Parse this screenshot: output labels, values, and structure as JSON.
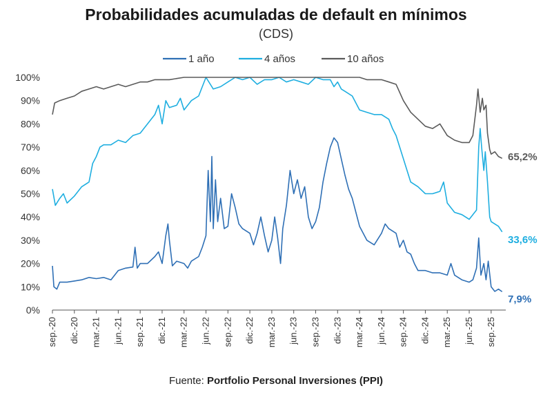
{
  "chart_data": {
    "type": "line",
    "title": "Probabilidades acumuladas de default en mínimos",
    "subtitle": "(CDS)",
    "source_prefix": "Fuente: ",
    "source_name": "Portfolio Personal Inversiones (PPI)",
    "ylim": [
      0,
      100
    ],
    "yticks": [
      0,
      10,
      20,
      30,
      40,
      50,
      60,
      70,
      80,
      90,
      100
    ],
    "ytick_labels": [
      "0%",
      "10%",
      "20%",
      "30%",
      "40%",
      "50%",
      "60%",
      "70%",
      "80%",
      "90%",
      "100%"
    ],
    "xlim": [
      0,
      62
    ],
    "x_unit": "months since sep.-20",
    "xticks": [
      0,
      3,
      6,
      9,
      12,
      15,
      18,
      21,
      24,
      27,
      30,
      33,
      36,
      39,
      42,
      45,
      48,
      51,
      54,
      57,
      60
    ],
    "xtick_labels": [
      "sep.-20",
      "dic.-20",
      "mar.-21",
      "jun.-21",
      "sep.-21",
      "dic.-21",
      "mar.-22",
      "jun.-22",
      "sep.-22",
      "dic.-22",
      "mar.-23",
      "jun.-23",
      "sep.-23",
      "dic.-23",
      "mar.-24",
      "jun.-24",
      "sep.-24",
      "dic.-24",
      "mar.-25",
      "jun.-25",
      "sep.-25"
    ],
    "legend_position": "top-center",
    "grid": false,
    "series": [
      {
        "name": "1 año",
        "color": "#2e6fb5",
        "end_label": "7,9%",
        "points": [
          [
            0,
            19
          ],
          [
            0.2,
            10
          ],
          [
            0.6,
            9
          ],
          [
            1,
            12
          ],
          [
            2,
            12
          ],
          [
            3,
            12.5
          ],
          [
            4,
            13
          ],
          [
            5,
            14
          ],
          [
            6,
            13.5
          ],
          [
            7,
            14
          ],
          [
            8,
            13
          ],
          [
            9,
            17
          ],
          [
            10,
            18
          ],
          [
            11,
            18.5
          ],
          [
            11.3,
            27
          ],
          [
            11.6,
            18
          ],
          [
            12,
            20
          ],
          [
            13,
            20
          ],
          [
            14,
            23
          ],
          [
            14.5,
            25
          ],
          [
            15,
            20
          ],
          [
            15.5,
            32
          ],
          [
            15.8,
            37
          ],
          [
            16,
            30
          ],
          [
            16.4,
            19
          ],
          [
            17,
            21
          ],
          [
            18,
            20
          ],
          [
            18.5,
            18
          ],
          [
            19,
            21
          ],
          [
            20,
            23
          ],
          [
            20.5,
            27
          ],
          [
            21,
            32
          ],
          [
            21.3,
            60
          ],
          [
            21.6,
            38
          ],
          [
            21.8,
            66
          ],
          [
            22,
            35
          ],
          [
            22.3,
            56
          ],
          [
            22.6,
            38
          ],
          [
            23,
            48
          ],
          [
            23.5,
            35
          ],
          [
            24,
            36
          ],
          [
            24.5,
            50
          ],
          [
            25,
            44
          ],
          [
            25.5,
            37
          ],
          [
            26,
            35
          ],
          [
            27,
            33
          ],
          [
            27.5,
            28
          ],
          [
            28,
            33
          ],
          [
            28.5,
            40
          ],
          [
            29,
            32
          ],
          [
            29.5,
            25
          ],
          [
            30,
            30
          ],
          [
            30.4,
            40
          ],
          [
            30.8,
            31
          ],
          [
            31.2,
            20
          ],
          [
            31.5,
            35
          ],
          [
            32,
            45
          ],
          [
            32.5,
            60
          ],
          [
            33,
            50
          ],
          [
            33.5,
            56
          ],
          [
            34,
            48
          ],
          [
            34.5,
            53
          ],
          [
            35,
            40
          ],
          [
            35.5,
            35
          ],
          [
            36,
            38
          ],
          [
            36.5,
            44
          ],
          [
            37,
            55
          ],
          [
            37.5,
            63
          ],
          [
            38,
            70
          ],
          [
            38.5,
            74
          ],
          [
            39,
            72
          ],
          [
            39.5,
            65
          ],
          [
            40,
            58
          ],
          [
            40.5,
            52
          ],
          [
            41,
            48
          ],
          [
            41.5,
            42
          ],
          [
            42,
            36
          ],
          [
            43,
            30
          ],
          [
            44,
            28
          ],
          [
            45,
            33
          ],
          [
            45.5,
            37
          ],
          [
            46,
            35
          ],
          [
            47,
            33
          ],
          [
            47.5,
            27
          ],
          [
            48,
            30
          ],
          [
            48.5,
            25
          ],
          [
            49,
            24
          ],
          [
            49.5,
            20
          ],
          [
            50,
            17
          ],
          [
            51,
            17
          ],
          [
            52,
            16
          ],
          [
            53,
            16
          ],
          [
            54,
            15
          ],
          [
            54.5,
            20
          ],
          [
            55,
            15
          ],
          [
            56,
            13
          ],
          [
            57,
            12
          ],
          [
            57.5,
            13
          ],
          [
            58,
            18
          ],
          [
            58.3,
            31
          ],
          [
            58.6,
            15
          ],
          [
            59,
            20
          ],
          [
            59.3,
            13
          ],
          [
            59.6,
            21
          ],
          [
            60,
            10
          ],
          [
            60.5,
            8
          ],
          [
            61,
            9
          ],
          [
            61.5,
            7.9
          ]
        ]
      },
      {
        "name": "4 años",
        "color": "#1eaee0",
        "end_label": "33,6%",
        "points": [
          [
            0,
            52
          ],
          [
            0.4,
            45
          ],
          [
            1,
            48
          ],
          [
            1.5,
            50
          ],
          [
            2,
            46
          ],
          [
            3,
            49
          ],
          [
            4,
            53
          ],
          [
            5,
            55
          ],
          [
            5.5,
            63
          ],
          [
            6,
            66
          ],
          [
            6.5,
            70
          ],
          [
            7,
            71
          ],
          [
            8,
            71
          ],
          [
            9,
            73
          ],
          [
            10,
            72
          ],
          [
            11,
            75
          ],
          [
            12,
            76
          ],
          [
            13,
            80
          ],
          [
            14,
            84
          ],
          [
            14.5,
            88
          ],
          [
            15,
            80
          ],
          [
            15.5,
            90
          ],
          [
            16,
            87
          ],
          [
            17,
            88
          ],
          [
            17.5,
            91
          ],
          [
            18,
            86
          ],
          [
            19,
            90
          ],
          [
            20,
            92
          ],
          [
            20.5,
            96
          ],
          [
            21,
            100
          ],
          [
            22,
            95
          ],
          [
            23,
            96
          ],
          [
            24,
            98
          ],
          [
            25,
            100
          ],
          [
            26,
            99
          ],
          [
            27,
            100
          ],
          [
            28,
            97
          ],
          [
            29,
            99
          ],
          [
            30,
            99
          ],
          [
            31,
            100
          ],
          [
            32,
            98
          ],
          [
            33,
            99
          ],
          [
            34,
            98
          ],
          [
            35,
            97
          ],
          [
            36,
            100
          ],
          [
            37,
            99
          ],
          [
            38,
            99
          ],
          [
            38.5,
            96
          ],
          [
            39,
            98
          ],
          [
            39.5,
            95
          ],
          [
            40,
            94
          ],
          [
            41,
            92
          ],
          [
            42,
            86
          ],
          [
            43,
            85
          ],
          [
            44,
            84
          ],
          [
            45,
            84
          ],
          [
            46,
            82
          ],
          [
            46.5,
            78
          ],
          [
            47,
            75
          ],
          [
            48,
            65
          ],
          [
            48.5,
            60
          ],
          [
            49,
            55
          ],
          [
            50,
            53
          ],
          [
            51,
            50
          ],
          [
            52,
            50
          ],
          [
            53,
            51
          ],
          [
            53.5,
            55
          ],
          [
            54,
            46
          ],
          [
            55,
            42
          ],
          [
            56,
            41
          ],
          [
            57,
            39
          ],
          [
            58,
            43
          ],
          [
            58.3,
            70
          ],
          [
            58.5,
            78
          ],
          [
            58.7,
            70
          ],
          [
            59,
            60
          ],
          [
            59.2,
            68
          ],
          [
            59.5,
            55
          ],
          [
            59.8,
            40
          ],
          [
            60,
            38
          ],
          [
            60.5,
            37
          ],
          [
            61,
            36
          ],
          [
            61.5,
            33.6
          ]
        ]
      },
      {
        "name": "10 años",
        "color": "#5a5a5a",
        "end_label": "65,2%",
        "points": [
          [
            0,
            84
          ],
          [
            0.3,
            89
          ],
          [
            1,
            90
          ],
          [
            2,
            91
          ],
          [
            3,
            92
          ],
          [
            4,
            94
          ],
          [
            5,
            95
          ],
          [
            6,
            96
          ],
          [
            7,
            95
          ],
          [
            8,
            96
          ],
          [
            9,
            97
          ],
          [
            10,
            96
          ],
          [
            11,
            97
          ],
          [
            12,
            98
          ],
          [
            13,
            98
          ],
          [
            14,
            99
          ],
          [
            15,
            99
          ],
          [
            16,
            99
          ],
          [
            17,
            99.5
          ],
          [
            18,
            100
          ],
          [
            19,
            100
          ],
          [
            20,
            100
          ],
          [
            21,
            100
          ],
          [
            22,
            100
          ],
          [
            23,
            100
          ],
          [
            24,
            100
          ],
          [
            25,
            100
          ],
          [
            26,
            100
          ],
          [
            27,
            100
          ],
          [
            28,
            100
          ],
          [
            29,
            100
          ],
          [
            30,
            100
          ],
          [
            31,
            100
          ],
          [
            32,
            100
          ],
          [
            33,
            100
          ],
          [
            34,
            100
          ],
          [
            35,
            100
          ],
          [
            36,
            100
          ],
          [
            37,
            100
          ],
          [
            38,
            100
          ],
          [
            39,
            100
          ],
          [
            40,
            100
          ],
          [
            41,
            100
          ],
          [
            42,
            100
          ],
          [
            43,
            99
          ],
          [
            44,
            99
          ],
          [
            45,
            99
          ],
          [
            46,
            98
          ],
          [
            47,
            97
          ],
          [
            48,
            90
          ],
          [
            49,
            85
          ],
          [
            50,
            82
          ],
          [
            51,
            79
          ],
          [
            52,
            78
          ],
          [
            53,
            80
          ],
          [
            54,
            75
          ],
          [
            55,
            73
          ],
          [
            56,
            72
          ],
          [
            57,
            72
          ],
          [
            57.5,
            75
          ],
          [
            58,
            88
          ],
          [
            58.2,
            95
          ],
          [
            58.5,
            85
          ],
          [
            58.8,
            91
          ],
          [
            59,
            86
          ],
          [
            59.3,
            88
          ],
          [
            59.5,
            76
          ],
          [
            59.8,
            69
          ],
          [
            60,
            67
          ],
          [
            60.5,
            68
          ],
          [
            61,
            66
          ],
          [
            61.5,
            65.2
          ]
        ]
      }
    ]
  }
}
